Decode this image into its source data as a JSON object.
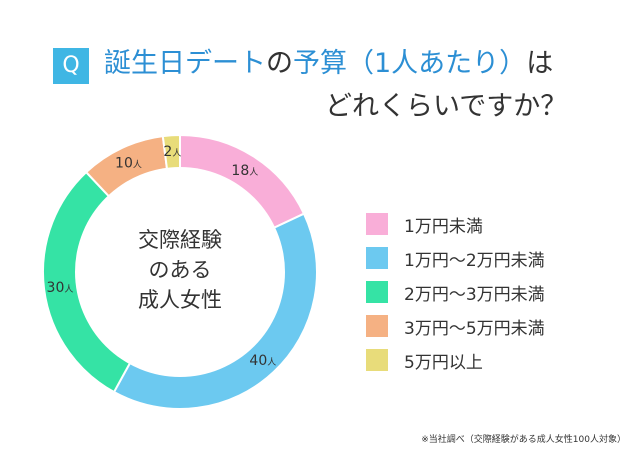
{
  "header": {
    "q_badge": "Q",
    "title_part1": "誕生日デート",
    "title_part2": "の",
    "title_part3": "予算（1人あたり）",
    "title_part4": "は",
    "title_line2": "どれくらいですか？"
  },
  "chart_data": {
    "type": "pie",
    "style": "donut",
    "center_label": [
      "交際経験",
      "のある",
      "成人女性"
    ],
    "unit": "人",
    "categories": [
      "1万円未満",
      "1万円〜2万円未満",
      "2万円〜3万円未満",
      "3万円〜5万円未満",
      "5万円以上"
    ],
    "values": [
      18,
      40,
      30,
      10,
      2
    ],
    "colors": [
      "#f9aed8",
      "#6cc9f0",
      "#35e3a5",
      "#f5b183",
      "#e8dc7a"
    ],
    "legend_position": "right"
  },
  "footnote": "※当社調べ（交際経験がある成人女性100人対象）"
}
